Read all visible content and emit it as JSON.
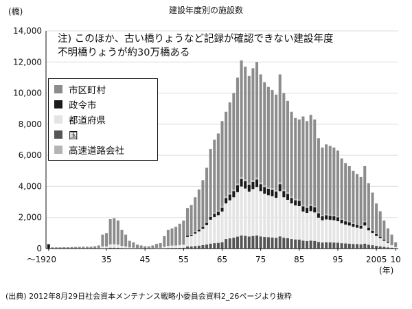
{
  "chart_data": {
    "type": "bar",
    "stacked": true,
    "title": "建設年度別の施設数",
    "ylabel": "(橋)",
    "xlabel": "(年)",
    "ylim": [
      0,
      14000
    ],
    "yticks": [
      0,
      2000,
      4000,
      6000,
      8000,
      10000,
      12000,
      14000
    ],
    "ytick_labels": [
      "0",
      "2,000",
      "4,000",
      "6,000",
      "8,000",
      "10,000",
      "12,000",
      "14,000"
    ],
    "xticks": [
      1920,
      1935,
      1945,
      1955,
      1965,
      1975,
      1985,
      1995,
      2005,
      2010
    ],
    "xtick_labels": [
      "～1920",
      "35",
      "45",
      "55",
      "65",
      "75",
      "85",
      "95",
      "2005",
      "10"
    ],
    "grid": true,
    "legend_position": "top-left",
    "note": [
      "注) このほか、古い橋りょうなど記録が確認できない建設年度",
      "不明橋りょうが約30万橋ある"
    ],
    "source": "(出典) 2012年8月29日社会資本メンテナンス戦略小委員会資料2_26ページより抜粋",
    "stack_order": [
      "国",
      "都道府県",
      "政令市",
      "高速道路会社",
      "市区町村"
    ],
    "series": [
      {
        "name": "市区町村",
        "color": "#8c8c8c"
      },
      {
        "name": "政令市",
        "color": "#1a1a1a"
      },
      {
        "name": "都道府県",
        "color": "#e4e4e4"
      },
      {
        "name": "国",
        "color": "#555555"
      },
      {
        "name": "高速道路会社",
        "color": "#b4b4b4"
      }
    ],
    "pre_1920_total": 280,
    "totals_by_year": [
      [
        1921,
        80
      ],
      [
        1922,
        80
      ],
      [
        1923,
        80
      ],
      [
        1924,
        90
      ],
      [
        1925,
        90
      ],
      [
        1926,
        100
      ],
      [
        1927,
        100
      ],
      [
        1928,
        110
      ],
      [
        1929,
        120
      ],
      [
        1930,
        120
      ],
      [
        1931,
        120
      ],
      [
        1932,
        150
      ],
      [
        1933,
        200
      ],
      [
        1934,
        900
      ],
      [
        1935,
        1000
      ],
      [
        1936,
        1900
      ],
      [
        1937,
        1950
      ],
      [
        1938,
        1800
      ],
      [
        1939,
        1200
      ],
      [
        1940,
        900
      ],
      [
        1941,
        500
      ],
      [
        1942,
        400
      ],
      [
        1943,
        250
      ],
      [
        1944,
        200
      ],
      [
        1945,
        150
      ],
      [
        1946,
        150
      ],
      [
        1947,
        200
      ],
      [
        1948,
        300
      ],
      [
        1949,
        350
      ],
      [
        1950,
        800
      ],
      [
        1951,
        1200
      ],
      [
        1952,
        1300
      ],
      [
        1953,
        1400
      ],
      [
        1954,
        1600
      ],
      [
        1955,
        1800
      ],
      [
        1956,
        2600
      ],
      [
        1957,
        2800
      ],
      [
        1958,
        3300
      ],
      [
        1959,
        3800
      ],
      [
        1960,
        4400
      ],
      [
        1961,
        5200
      ],
      [
        1962,
        6400
      ],
      [
        1963,
        7000
      ],
      [
        1964,
        7400
      ],
      [
        1965,
        8200
      ],
      [
        1966,
        8800
      ],
      [
        1967,
        9400
      ],
      [
        1968,
        10000
      ],
      [
        1969,
        11000
      ],
      [
        1970,
        12100
      ],
      [
        1971,
        11700
      ],
      [
        1972,
        11100
      ],
      [
        1973,
        11600
      ],
      [
        1974,
        12000
      ],
      [
        1975,
        11200
      ],
      [
        1976,
        10700
      ],
      [
        1977,
        10400
      ],
      [
        1978,
        10200
      ],
      [
        1979,
        9900
      ],
      [
        1980,
        11200
      ],
      [
        1981,
        10000
      ],
      [
        1982,
        9500
      ],
      [
        1983,
        8800
      ],
      [
        1984,
        8400
      ],
      [
        1985,
        8300
      ],
      [
        1986,
        8500
      ],
      [
        1987,
        8200
      ],
      [
        1988,
        8600
      ],
      [
        1989,
        8300
      ],
      [
        1990,
        7100
      ],
      [
        1991,
        6500
      ],
      [
        1992,
        6700
      ],
      [
        1993,
        6600
      ],
      [
        1994,
        6500
      ],
      [
        1995,
        6300
      ],
      [
        1996,
        5800
      ],
      [
        1997,
        5500
      ],
      [
        1998,
        5300
      ],
      [
        1999,
        5000
      ],
      [
        2000,
        4800
      ],
      [
        2001,
        4600
      ],
      [
        2002,
        5300
      ],
      [
        2003,
        4200
      ],
      [
        2004,
        3600
      ],
      [
        2005,
        2900
      ],
      [
        2006,
        2400
      ],
      [
        2007,
        1800
      ],
      [
        2008,
        1300
      ],
      [
        2009,
        900
      ],
      [
        2010,
        400
      ]
    ],
    "stack_values_by_year": [
      [
        1921,
        2,
        8,
        0,
        0,
        70
      ],
      [
        1922,
        2,
        8,
        0,
        0,
        70
      ],
      [
        1923,
        2,
        8,
        0,
        0,
        70
      ],
      [
        1924,
        3,
        10,
        0,
        0,
        77
      ],
      [
        1925,
        3,
        10,
        0,
        0,
        77
      ],
      [
        1926,
        3,
        12,
        0,
        0,
        85
      ],
      [
        1927,
        3,
        12,
        0,
        0,
        85
      ],
      [
        1928,
        4,
        13,
        0,
        0,
        93
      ],
      [
        1929,
        4,
        14,
        0,
        0,
        102
      ],
      [
        1930,
        4,
        14,
        0,
        0,
        102
      ],
      [
        1931,
        4,
        14,
        0,
        0,
        102
      ],
      [
        1932,
        5,
        18,
        0,
        0,
        127
      ],
      [
        1933,
        6,
        24,
        0,
        0,
        170
      ],
      [
        1934,
        27,
        108,
        0,
        0,
        765
      ],
      [
        1935,
        30,
        120,
        10,
        0,
        840
      ],
      [
        1936,
        57,
        228,
        19,
        0,
        1596
      ],
      [
        1937,
        59,
        234,
        20,
        0,
        1637
      ],
      [
        1938,
        54,
        216,
        18,
        0,
        1512
      ],
      [
        1939,
        36,
        144,
        12,
        0,
        1008
      ],
      [
        1940,
        27,
        108,
        9,
        0,
        756
      ],
      [
        1941,
        15,
        60,
        5,
        0,
        420
      ],
      [
        1942,
        12,
        48,
        4,
        0,
        336
      ],
      [
        1943,
        8,
        30,
        3,
        0,
        209
      ],
      [
        1944,
        6,
        24,
        2,
        0,
        168
      ],
      [
        1945,
        5,
        18,
        2,
        0,
        125
      ],
      [
        1946,
        5,
        18,
        2,
        0,
        125
      ],
      [
        1947,
        6,
        24,
        2,
        0,
        168
      ],
      [
        1948,
        9,
        36,
        3,
        0,
        252
      ],
      [
        1949,
        11,
        42,
        4,
        0,
        293
      ],
      [
        1950,
        24,
        96,
        8,
        0,
        672
      ],
      [
        1951,
        36,
        144,
        12,
        0,
        1008
      ],
      [
        1952,
        39,
        156,
        13,
        0,
        1092
      ],
      [
        1953,
        42,
        168,
        14,
        0,
        1176
      ],
      [
        1954,
        48,
        192,
        16,
        0,
        1344
      ],
      [
        1955,
        54,
        216,
        18,
        0,
        1512
      ],
      [
        1956,
        130,
        624,
        78,
        26,
        1742
      ],
      [
        1957,
        140,
        672,
        84,
        28,
        1876
      ],
      [
        1958,
        165,
        792,
        99,
        33,
        2211
      ],
      [
        1959,
        190,
        912,
        114,
        38,
        2546
      ],
      [
        1960,
        220,
        1056,
        132,
        44,
        2948
      ],
      [
        1961,
        260,
        1248,
        156,
        52,
        3484
      ],
      [
        1962,
        320,
        1536,
        192,
        64,
        4288
      ],
      [
        1963,
        350,
        1680,
        210,
        70,
        4690
      ],
      [
        1964,
        370,
        1776,
        222,
        74,
        4958
      ],
      [
        1965,
        410,
        1968,
        246,
        82,
        5494
      ],
      [
        1966,
        616,
        2288,
        352,
        88,
        5456
      ],
      [
        1967,
        658,
        2444,
        376,
        94,
        5828
      ],
      [
        1968,
        700,
        2600,
        400,
        100,
        6200
      ],
      [
        1969,
        770,
        2860,
        440,
        110,
        6820
      ],
      [
        1970,
        847,
        3146,
        484,
        121,
        7502
      ],
      [
        1971,
        819,
        3042,
        468,
        117,
        7254
      ],
      [
        1972,
        777,
        2886,
        444,
        111,
        6882
      ],
      [
        1973,
        812,
        3016,
        464,
        116,
        7192
      ],
      [
        1974,
        840,
        3120,
        480,
        120,
        7440
      ],
      [
        1975,
        784,
        2912,
        448,
        112,
        6944
      ],
      [
        1976,
        749,
        2782,
        428,
        107,
        6634
      ],
      [
        1977,
        728,
        2704,
        416,
        104,
        6448
      ],
      [
        1978,
        714,
        2652,
        408,
        102,
        6324
      ],
      [
        1979,
        693,
        2574,
        396,
        99,
        6138
      ],
      [
        1980,
        784,
        2912,
        448,
        112,
        6944
      ],
      [
        1981,
        700,
        2600,
        400,
        100,
        6200
      ],
      [
        1982,
        665,
        2470,
        380,
        95,
        5890
      ],
      [
        1983,
        616,
        2288,
        352,
        88,
        5456
      ],
      [
        1984,
        588,
        2184,
        336,
        84,
        5208
      ],
      [
        1985,
        581,
        2158,
        332,
        83,
        5146
      ],
      [
        1986,
        510,
        1870,
        340,
        85,
        5695
      ],
      [
        1987,
        492,
        1804,
        328,
        82,
        5494
      ],
      [
        1988,
        516,
        1892,
        344,
        86,
        5762
      ],
      [
        1989,
        498,
        1826,
        332,
        83,
        5561
      ],
      [
        1990,
        426,
        1562,
        284,
        71,
        4757
      ],
      [
        1991,
        390,
        1430,
        260,
        65,
        4355
      ],
      [
        1992,
        402,
        1474,
        268,
        67,
        4489
      ],
      [
        1993,
        396,
        1452,
        264,
        66,
        4422
      ],
      [
        1994,
        390,
        1430,
        260,
        65,
        4355
      ],
      [
        1995,
        378,
        1386,
        252,
        63,
        4221
      ],
      [
        1996,
        348,
        1276,
        232,
        58,
        3886
      ],
      [
        1997,
        330,
        1210,
        220,
        55,
        3685
      ],
      [
        1998,
        318,
        1166,
        212,
        53,
        3551
      ],
      [
        1999,
        300,
        1100,
        200,
        50,
        3350
      ],
      [
        2000,
        288,
        1056,
        192,
        48,
        3216
      ],
      [
        2001,
        276,
        1012,
        184,
        46,
        3082
      ],
      [
        2002,
        318,
        1166,
        212,
        53,
        3551
      ],
      [
        2003,
        252,
        924,
        168,
        42,
        2814
      ],
      [
        2004,
        216,
        792,
        144,
        36,
        2412
      ],
      [
        2005,
        174,
        638,
        116,
        29,
        1943
      ],
      [
        2006,
        144,
        528,
        96,
        24,
        1608
      ],
      [
        2007,
        108,
        396,
        72,
        18,
        1206
      ],
      [
        2008,
        78,
        286,
        52,
        13,
        871
      ],
      [
        2009,
        54,
        198,
        36,
        9,
        603
      ],
      [
        2010,
        24,
        88,
        16,
        4,
        268
      ]
    ]
  }
}
